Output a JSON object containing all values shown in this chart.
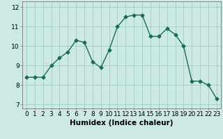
{
  "x": [
    0,
    1,
    2,
    3,
    4,
    5,
    6,
    7,
    8,
    9,
    10,
    11,
    12,
    13,
    14,
    15,
    16,
    17,
    18,
    19,
    20,
    21,
    22,
    23
  ],
  "y": [
    8.4,
    8.4,
    8.4,
    9.0,
    9.4,
    9.7,
    10.3,
    10.2,
    9.2,
    8.9,
    9.8,
    11.0,
    11.5,
    11.6,
    11.6,
    10.5,
    10.5,
    10.9,
    10.6,
    10.0,
    8.2,
    8.2,
    8.0,
    7.3
  ],
  "line_color": "#1a6b5a",
  "marker": "D",
  "marker_size": 2.5,
  "bg_color": "#cce9e4",
  "grid_color": "#a0ccc5",
  "xlabel": "Humidex (Indice chaleur)",
  "xlabel_fontsize": 7.5,
  "xlim": [
    -0.5,
    23.5
  ],
  "ylim": [
    6.8,
    12.3
  ],
  "yticks": [
    7,
    8,
    9,
    10,
    11,
    12
  ],
  "xticks": [
    0,
    1,
    2,
    3,
    4,
    5,
    6,
    7,
    8,
    9,
    10,
    11,
    12,
    13,
    14,
    15,
    16,
    17,
    18,
    19,
    20,
    21,
    22,
    23
  ],
  "tick_fontsize": 6.5,
  "linewidth": 1.0
}
